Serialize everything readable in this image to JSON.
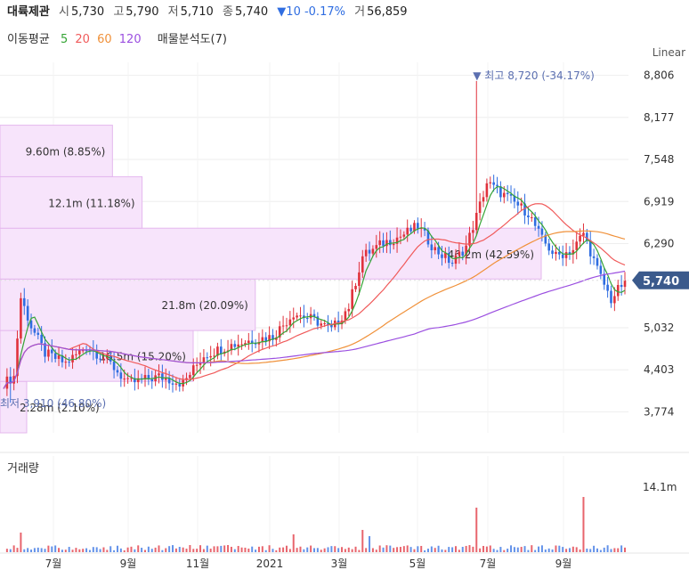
{
  "header": {
    "name": "대륙제관",
    "open_label": "시",
    "open": "5,730",
    "high_label": "고",
    "high": "5,790",
    "low_label": "저",
    "low": "5,710",
    "close_label": "종",
    "close": "5,740",
    "change": "▼10 -0.17%",
    "volume_label": "거",
    "volume": "56,859"
  },
  "indicators": {
    "title": "이동평균",
    "ma5": "5",
    "ma20": "20",
    "ma60": "60",
    "ma120": "120",
    "profile_label": "매물분석도(7)"
  },
  "scale_label": "Linear",
  "colors": {
    "up": "#e0323c",
    "down": "#2f6de1",
    "ma5": "#35a435",
    "ma20": "#f05a5a",
    "ma60": "#f0913a",
    "ma120": "#9b4fe0",
    "profile_fill": "#f7e4fb",
    "profile_stroke": "#e4b8ee",
    "price_badge": "#3b5a8c"
  },
  "chart_data": {
    "type": "candlestick",
    "y_ticks": [
      "8,806",
      "8,177",
      "7,548",
      "6,919",
      "6,290",
      "5,740",
      "5,032",
      "4,403",
      "3,774"
    ],
    "y_range": [
      3460,
      9000
    ],
    "x_ticks": [
      "7월",
      "9월",
      "11월",
      "2021",
      "3월",
      "5월",
      "7월",
      "9월"
    ],
    "current_price": 5740,
    "current_price_label": "5,740",
    "max_annotation": "▼ 최고 8,720 (-34.17%)",
    "max_price": 8720,
    "min_annotation": "최저 3,910 (46.80%)",
    "min_price": 3910,
    "volume_label": "거래량",
    "volume_tick": "14.1m",
    "volume_profile": [
      {
        "low": 3460,
        "high": 4230,
        "share": 0.021,
        "label": "2.28m (2.10%)"
      },
      {
        "low": 4230,
        "high": 4990,
        "share": 0.152,
        "label": "16.5m (15.20%)"
      },
      {
        "low": 4990,
        "high": 5760,
        "share": 0.2009,
        "label": "21.8m (20.09%)"
      },
      {
        "low": 5760,
        "high": 6520,
        "share": 0.4259,
        "label": "46.2m (42.59%)"
      },
      {
        "low": 6520,
        "high": 7290,
        "share": 0.1118,
        "label": "12.1m (11.18%)"
      },
      {
        "low": 7290,
        "high": 8060,
        "share": 0.0885,
        "label": "9.60m (8.85%)"
      }
    ],
    "trend": [
      [
        0,
        4200
      ],
      [
        3,
        4300
      ],
      [
        5,
        5480
      ],
      [
        8,
        5050
      ],
      [
        12,
        4650
      ],
      [
        18,
        4500
      ],
      [
        24,
        4750
      ],
      [
        30,
        4550
      ],
      [
        36,
        4200
      ],
      [
        45,
        4300
      ],
      [
        52,
        4200
      ],
      [
        58,
        4620
      ],
      [
        65,
        4760
      ],
      [
        72,
        4850
      ],
      [
        78,
        4900
      ],
      [
        84,
        5250
      ],
      [
        90,
        5150
      ],
      [
        95,
        5000
      ],
      [
        100,
        5350
      ],
      [
        104,
        6100
      ],
      [
        110,
        6300
      ],
      [
        115,
        6400
      ],
      [
        120,
        6550
      ],
      [
        125,
        6200
      ],
      [
        130,
        6000
      ],
      [
        134,
        6250
      ],
      [
        137,
        6700
      ],
      [
        140,
        7200
      ],
      [
        144,
        7050
      ],
      [
        148,
        6900
      ],
      [
        152,
        6750
      ],
      [
        156,
        6350
      ],
      [
        160,
        6100
      ],
      [
        165,
        6200
      ],
      [
        168,
        6450
      ],
      [
        172,
        5900
      ],
      [
        176,
        5450
      ],
      [
        180,
        5740
      ]
    ]
  }
}
